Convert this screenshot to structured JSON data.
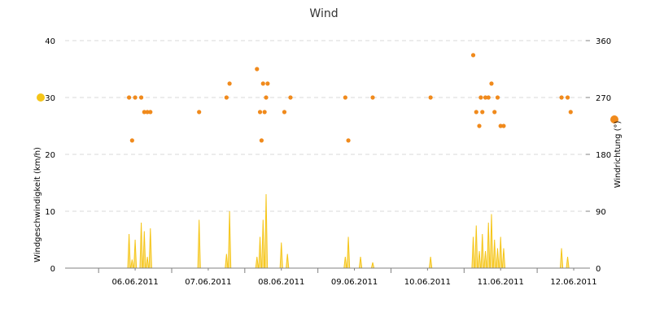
{
  "chart_data": {
    "type": "combo",
    "title": "Wind",
    "x_axis": {
      "type": "date",
      "range": [
        "2011-06-05T13:00",
        "2011-06-12T16:00"
      ],
      "tick_labels": [
        "06.06.2011",
        "07.06.2011",
        "08.06.2011",
        "09.06.2011",
        "10.06.2011",
        "11.06.2011",
        "12.06.2011"
      ],
      "tick_dates": [
        "2011-06-06T12:00",
        "2011-06-07T12:00",
        "2011-06-08T12:00",
        "2011-06-09T12:00",
        "2011-06-10T12:00",
        "2011-06-11T12:00",
        "2011-06-12T12:00"
      ]
    },
    "y_left": {
      "label": "Windgeschwindigkeit (km/h)",
      "range": [
        0,
        40
      ],
      "ticks": [
        "0",
        "10",
        "20",
        "30",
        "40"
      ],
      "legend_color": "#f5c518"
    },
    "y_right": {
      "label": "Windrichtung (°)",
      "range": [
        0,
        360
      ],
      "ticks": [
        "0",
        "90",
        "180",
        "270",
        "360"
      ],
      "legend_color": "#f08a1c"
    },
    "grid": true,
    "series": [
      {
        "name": "Windgeschwindigkeit (km/h)",
        "type": "area-spikes",
        "axis": "left",
        "color": "#f5c518",
        "points": [
          [
            "2011-06-06T10:00",
            6.0
          ],
          [
            "2011-06-06T11:00",
            1.5
          ],
          [
            "2011-06-06T12:00",
            5.0
          ],
          [
            "2011-06-06T14:00",
            8.0
          ],
          [
            "2011-06-06T15:00",
            6.5
          ],
          [
            "2011-06-06T16:00",
            2.0
          ],
          [
            "2011-06-06T17:00",
            7.0
          ],
          [
            "2011-06-07T09:00",
            8.5
          ],
          [
            "2011-06-07T18:00",
            2.5
          ],
          [
            "2011-06-07T19:00",
            10.0
          ],
          [
            "2011-06-08T04:00",
            2.0
          ],
          [
            "2011-06-08T05:00",
            5.5
          ],
          [
            "2011-06-08T06:00",
            8.5
          ],
          [
            "2011-06-08T07:00",
            13.0
          ],
          [
            "2011-06-08T12:00",
            4.5
          ],
          [
            "2011-06-08T14:00",
            2.5
          ],
          [
            "2011-06-09T09:00",
            2.0
          ],
          [
            "2011-06-09T10:00",
            5.5
          ],
          [
            "2011-06-09T14:00",
            2.0
          ],
          [
            "2011-06-09T18:00",
            1.0
          ],
          [
            "2011-06-10T13:00",
            2.0
          ],
          [
            "2011-06-11T03:00",
            5.5
          ],
          [
            "2011-06-11T04:00",
            7.5
          ],
          [
            "2011-06-11T05:00",
            3.0
          ],
          [
            "2011-06-11T06:00",
            6.0
          ],
          [
            "2011-06-11T07:00",
            3.0
          ],
          [
            "2011-06-11T08:00",
            8.0
          ],
          [
            "2011-06-11T09:00",
            9.5
          ],
          [
            "2011-06-11T10:00",
            5.0
          ],
          [
            "2011-06-11T11:00",
            3.5
          ],
          [
            "2011-06-11T12:00",
            5.5
          ],
          [
            "2011-06-11T13:00",
            3.5
          ],
          [
            "2011-06-12T08:00",
            3.5
          ],
          [
            "2011-06-12T10:00",
            2.0
          ]
        ]
      },
      {
        "name": "Windrichtung (°)",
        "type": "scatter",
        "axis": "right",
        "color": "#f08a1c",
        "points": [
          [
            "2011-06-06T10:00",
            270
          ],
          [
            "2011-06-06T11:00",
            202
          ],
          [
            "2011-06-06T12:00",
            270
          ],
          [
            "2011-06-06T14:00",
            270
          ],
          [
            "2011-06-06T15:00",
            247
          ],
          [
            "2011-06-06T16:00",
            247
          ],
          [
            "2011-06-06T17:00",
            247
          ],
          [
            "2011-06-07T09:00",
            247
          ],
          [
            "2011-06-07T18:00",
            270
          ],
          [
            "2011-06-07T19:00",
            292
          ],
          [
            "2011-06-08T04:00",
            315
          ],
          [
            "2011-06-08T05:00",
            247
          ],
          [
            "2011-06-08T05:30",
            202
          ],
          [
            "2011-06-08T06:00",
            292
          ],
          [
            "2011-06-08T06:30",
            247
          ],
          [
            "2011-06-08T07:00",
            270
          ],
          [
            "2011-06-08T07:30",
            292
          ],
          [
            "2011-06-08T13:00",
            247
          ],
          [
            "2011-06-08T15:00",
            270
          ],
          [
            "2011-06-09T09:00",
            270
          ],
          [
            "2011-06-09T10:00",
            202
          ],
          [
            "2011-06-09T18:00",
            270
          ],
          [
            "2011-06-10T13:00",
            270
          ],
          [
            "2011-06-11T03:00",
            337
          ],
          [
            "2011-06-11T04:00",
            247
          ],
          [
            "2011-06-11T05:00",
            225
          ],
          [
            "2011-06-11T05:30",
            270
          ],
          [
            "2011-06-11T06:00",
            247
          ],
          [
            "2011-06-11T07:00",
            270
          ],
          [
            "2011-06-11T08:00",
            270
          ],
          [
            "2011-06-11T09:00",
            292
          ],
          [
            "2011-06-11T10:00",
            247
          ],
          [
            "2011-06-11T11:00",
            270
          ],
          [
            "2011-06-11T12:00",
            225
          ],
          [
            "2011-06-11T13:00",
            225
          ],
          [
            "2011-06-12T08:00",
            270
          ],
          [
            "2011-06-12T10:00",
            270
          ],
          [
            "2011-06-12T11:00",
            247
          ]
        ]
      }
    ]
  }
}
